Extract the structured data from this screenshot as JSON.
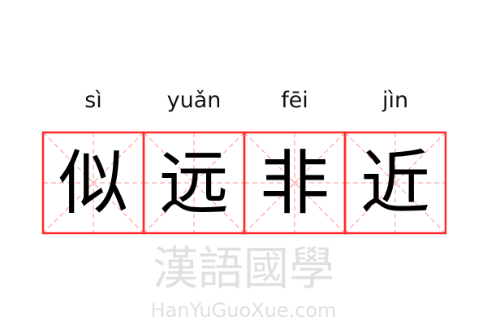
{
  "pinyin": [
    "sì",
    "yuǎn",
    "fēi",
    "jìn"
  ],
  "characters": [
    "似",
    "远",
    "非",
    "近"
  ],
  "watermark": {
    "cn": "漢語國學",
    "en": "HanYuGuoXue.com"
  },
  "colors": {
    "border": "#ff2a2a",
    "guide": "#ffaaaa",
    "text": "#000000",
    "watermark": "#e6e6e6"
  }
}
